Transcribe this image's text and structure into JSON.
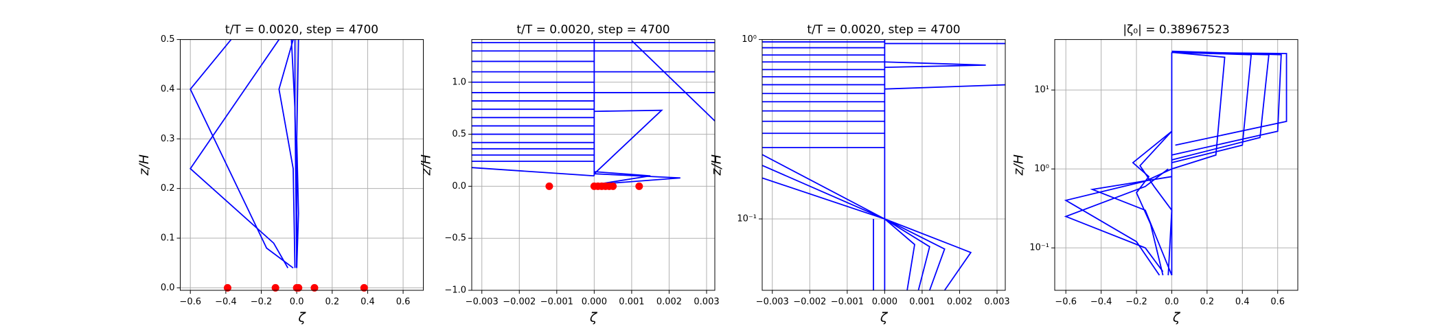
{
  "chart_data": [
    {
      "type": "line",
      "title": "t/T = 0.0020, step = 4700",
      "xlabel": "ζ",
      "ylabel": "z/H",
      "grid": true,
      "ylog": false,
      "xlim": [
        -0.657,
        0.714
      ],
      "ylim": [
        -0.005,
        0.5
      ],
      "xticks": [
        {
          "value": -0.6,
          "label": "−0.6"
        },
        {
          "value": -0.4,
          "label": "−0.4"
        },
        {
          "value": -0.2,
          "label": "−0.2"
        },
        {
          "value": 0,
          "label": "0.0"
        },
        0.2,
        0.4,
        0.6
      ],
      "yticks": [
        {
          "value": 0,
          "label": "0.0"
        },
        0.1,
        0.2,
        0.3,
        0.4,
        0.5
      ],
      "series": [
        {
          "color": "#0000ff",
          "x": [
            -0.37,
            -0.6,
            -0.17,
            -0.02
          ],
          "values": [
            0.5,
            0.4,
            0.08,
            0.04
          ]
        },
        {
          "color": "#0000ff",
          "x": [
            -0.1,
            -0.6,
            -0.13,
            -0.05
          ],
          "values": [
            0.5,
            0.24,
            0.09,
            0.04
          ]
        },
        {
          "color": "#0000ff",
          "x": [
            -0.02,
            -0.1,
            -0.02,
            -0.01
          ],
          "values": [
            0.5,
            0.4,
            0.24,
            0.04
          ]
        },
        {
          "color": "#0000ff",
          "x": [
            -0.01,
            -0.01,
            0.0,
            0.0
          ],
          "values": [
            0.5,
            0.35,
            0.2,
            0.04
          ]
        },
        {
          "color": "#0000ff",
          "x": [
            0.01,
            0.0,
            0.01,
            0.0
          ],
          "values": [
            0.5,
            0.3,
            0.15,
            0.04
          ]
        },
        {
          "color": "#0000ff",
          "x": [
            -0.03,
            -0.01,
            0.0
          ],
          "values": [
            0.5,
            0.36,
            0.04
          ]
        }
      ],
      "points": {
        "color": "#ff0000",
        "x": [
          -0.39,
          -0.12,
          0.0,
          0.01,
          0.1,
          0.38
        ],
        "values": [
          0,
          0,
          0,
          0,
          0,
          0
        ]
      }
    },
    {
      "type": "line",
      "title": "t/T = 0.0020, step = 4700",
      "xlabel": "ζ",
      "ylabel": "z/H",
      "grid": true,
      "ylog": false,
      "xlim": [
        -0.00327,
        0.00322
      ],
      "ylim": [
        -1.0,
        1.41
      ],
      "xticks": [
        {
          "value": -0.003,
          "label": "−0.003"
        },
        {
          "value": -0.002,
          "label": "−0.002"
        },
        {
          "value": -0.001,
          "label": "−0.001"
        },
        {
          "value": 0,
          "label": "0.000"
        },
        0.001,
        0.002,
        0.003
      ],
      "yticks": [
        {
          "value": -1.0,
          "label": "−1.0"
        },
        {
          "value": -0.5,
          "label": "−0.5"
        },
        {
          "value": 0,
          "label": "0.0"
        },
        0.5,
        {
          "value": 1.0,
          "label": "1.0"
        }
      ],
      "series": [
        {
          "color": "#0000ff",
          "x": [
            0,
            0
          ],
          "values": [
            0.1,
            1.41
          ]
        },
        {
          "color": "#0000ff",
          "x": [
            -0.0033,
            0,
            0
          ],
          "values": [
            0.18,
            0.1,
            0.1
          ]
        },
        {
          "color": "#0000ff",
          "x": [
            -0.0033,
            0
          ],
          "values": [
            0.24,
            0.24
          ]
        },
        {
          "color": "#0000ff",
          "x": [
            -0.0033,
            0
          ],
          "values": [
            0.3,
            0.3
          ]
        },
        {
          "color": "#0000ff",
          "x": [
            -0.0033,
            0
          ],
          "values": [
            0.36,
            0.36
          ]
        },
        {
          "color": "#0000ff",
          "x": [
            -0.0033,
            0
          ],
          "values": [
            0.42,
            0.42
          ]
        },
        {
          "color": "#0000ff",
          "x": [
            -0.0033,
            0
          ],
          "values": [
            0.5,
            0.5
          ]
        },
        {
          "color": "#0000ff",
          "x": [
            -0.0033,
            0
          ],
          "values": [
            0.58,
            0.58
          ]
        },
        {
          "color": "#0000ff",
          "x": [
            -0.0033,
            0
          ],
          "values": [
            0.66,
            0.66
          ]
        },
        {
          "color": "#0000ff",
          "x": [
            -0.0033,
            0
          ],
          "values": [
            0.74,
            0.74
          ]
        },
        {
          "color": "#0000ff",
          "x": [
            -0.0033,
            0
          ],
          "values": [
            0.82,
            0.82
          ]
        },
        {
          "color": "#0000ff",
          "x": [
            -0.0033,
            0
          ],
          "values": [
            0.9,
            0.9
          ]
        },
        {
          "color": "#0000ff",
          "x": [
            -0.0033,
            0
          ],
          "values": [
            1.0,
            1.0
          ]
        },
        {
          "color": "#0000ff",
          "x": [
            -0.0033,
            0
          ],
          "values": [
            1.1,
            1.1
          ]
        },
        {
          "color": "#0000ff",
          "x": [
            -0.0033,
            0
          ],
          "values": [
            1.2,
            1.2
          ]
        },
        {
          "color": "#0000ff",
          "x": [
            -0.0033,
            0
          ],
          "values": [
            1.3,
            1.3
          ]
        },
        {
          "color": "#0000ff",
          "x": [
            -0.0033,
            0
          ],
          "values": [
            1.38,
            1.38
          ]
        },
        {
          "color": "#0000ff",
          "x": [
            0,
            0.0033
          ],
          "values": [
            1.3,
            1.3
          ]
        },
        {
          "color": "#0000ff",
          "x": [
            0,
            0.0033
          ],
          "values": [
            1.38,
            1.38
          ]
        },
        {
          "color": "#0000ff",
          "x": [
            0,
            0.0033
          ],
          "values": [
            0.9,
            0.9
          ]
        },
        {
          "color": "#0000ff",
          "x": [
            0,
            0.0033
          ],
          "values": [
            1.1,
            1.1
          ]
        },
        {
          "color": "#0000ff",
          "x": [
            0,
            0.0023,
            0.0001
          ],
          "values": [
            0.12,
            0.08,
            0.02
          ]
        },
        {
          "color": "#0000ff",
          "x": [
            0,
            0.0015,
            0.0001
          ],
          "values": [
            0.14,
            0.1,
            0.02
          ]
        },
        {
          "color": "#0000ff",
          "x": [
            0,
            0.0018,
            0
          ],
          "values": [
            0.72,
            0.73,
            0.12
          ]
        },
        {
          "color": "#0000ff",
          "x": [
            0.001,
            0.0033
          ],
          "values": [
            1.4,
            0.6
          ]
        }
      ],
      "points": {
        "color": "#ff0000",
        "x": [
          -0.0012,
          0.0,
          0.0001,
          0.0002,
          0.0003,
          0.0004,
          0.0005,
          0.0012
        ],
        "values": [
          0,
          0,
          0,
          0,
          0,
          0,
          0,
          0
        ]
      }
    },
    {
      "type": "line",
      "title": "t/T = 0.0020, step = 4700",
      "xlabel": "ζ",
      "ylabel": "z/H",
      "grid": true,
      "ylog": true,
      "xlim": [
        -0.00327,
        0.00322
      ],
      "ylim": [
        0.04,
        1
      ],
      "xticks": [
        {
          "value": -0.003,
          "label": "−0.003"
        },
        {
          "value": -0.002,
          "label": "−0.002"
        },
        {
          "value": -0.001,
          "label": "−0.001"
        },
        {
          "value": 0,
          "label": "0.000"
        },
        0.001,
        0.002,
        0.003
      ],
      "yticks": [
        {
          "value": 0.1,
          "label": "10⁻¹"
        },
        {
          "value": 1,
          "label": "10⁰"
        }
      ],
      "series": [
        {
          "color": "#0000ff",
          "x": [
            0,
            0
          ],
          "values": [
            0.04,
            1
          ]
        },
        {
          "color": "#0000ff",
          "x": [
            -0.0003,
            -0.0003
          ],
          "values": [
            0.04,
            0.1
          ]
        },
        {
          "color": "#0000ff",
          "x": [
            -0.0033,
            0
          ],
          "values": [
            0.17,
            0.1
          ]
        },
        {
          "color": "#0000ff",
          "x": [
            -0.0033,
            0
          ],
          "values": [
            0.2,
            0.1
          ]
        },
        {
          "color": "#0000ff",
          "x": [
            -0.0033,
            0
          ],
          "values": [
            0.23,
            0.1
          ]
        },
        {
          "color": "#0000ff",
          "x": [
            -0.0033,
            0
          ],
          "values": [
            0.25,
            0.25
          ]
        },
        {
          "color": "#0000ff",
          "x": [
            -0.0033,
            0
          ],
          "values": [
            0.3,
            0.3
          ]
        },
        {
          "color": "#0000ff",
          "x": [
            -0.0033,
            0
          ],
          "values": [
            0.35,
            0.35
          ]
        },
        {
          "color": "#0000ff",
          "x": [
            -0.0033,
            0
          ],
          "values": [
            0.4,
            0.4
          ]
        },
        {
          "color": "#0000ff",
          "x": [
            -0.0033,
            0
          ],
          "values": [
            0.45,
            0.45
          ]
        },
        {
          "color": "#0000ff",
          "x": [
            -0.0033,
            0
          ],
          "values": [
            0.5,
            0.5
          ]
        },
        {
          "color": "#0000ff",
          "x": [
            -0.0033,
            0
          ],
          "values": [
            0.56,
            0.56
          ]
        },
        {
          "color": "#0000ff",
          "x": [
            -0.0033,
            0
          ],
          "values": [
            0.62,
            0.62
          ]
        },
        {
          "color": "#0000ff",
          "x": [
            -0.0033,
            0
          ],
          "values": [
            0.68,
            0.68
          ]
        },
        {
          "color": "#0000ff",
          "x": [
            -0.0033,
            0
          ],
          "values": [
            0.75,
            0.75
          ]
        },
        {
          "color": "#0000ff",
          "x": [
            -0.0033,
            0
          ],
          "values": [
            0.82,
            0.82
          ]
        },
        {
          "color": "#0000ff",
          "x": [
            -0.0033,
            0
          ],
          "values": [
            0.9,
            0.9
          ]
        },
        {
          "color": "#0000ff",
          "x": [
            -0.0033,
            0
          ],
          "values": [
            0.97,
            0.97
          ]
        },
        {
          "color": "#0000ff",
          "x": [
            0,
            0.0023,
            0.0016
          ],
          "values": [
            0.1,
            0.065,
            0.04
          ]
        },
        {
          "color": "#0000ff",
          "x": [
            0,
            0.0016,
            0.0012
          ],
          "values": [
            0.1,
            0.068,
            0.04
          ]
        },
        {
          "color": "#0000ff",
          "x": [
            0,
            0.0012,
            0.0009
          ],
          "values": [
            0.1,
            0.07,
            0.04
          ]
        },
        {
          "color": "#0000ff",
          "x": [
            0,
            0.0008,
            0.0006
          ],
          "values": [
            0.1,
            0.072,
            0.04
          ]
        },
        {
          "color": "#0000ff",
          "x": [
            0,
            0.0033
          ],
          "values": [
            0.53,
            0.56
          ]
        },
        {
          "color": "#0000ff",
          "x": [
            0,
            0.0027,
            0
          ],
          "values": [
            0.7,
            0.72,
            0.75
          ]
        },
        {
          "color": "#0000ff",
          "x": [
            0,
            0.0033
          ],
          "values": [
            0.95,
            0.95
          ]
        }
      ]
    },
    {
      "type": "line",
      "title": "|ζ₀| = 0.38967523",
      "xlabel": "ζ",
      "ylabel": "z/H",
      "grid": true,
      "ylog": true,
      "xlim": [
        -0.663,
        0.714
      ],
      "ylim": [
        0.029,
        43.6
      ],
      "xticks": [
        {
          "value": -0.6,
          "label": "−0.6"
        },
        {
          "value": -0.4,
          "label": "−0.4"
        },
        {
          "value": -0.2,
          "label": "−0.2"
        },
        {
          "value": 0,
          "label": "0.0"
        },
        0.2,
        0.4,
        0.6
      ],
      "yticks": [
        {
          "value": 0.1,
          "label": "10⁻¹"
        },
        {
          "value": 1,
          "label": "10⁰"
        },
        {
          "value": 10,
          "label": "10¹"
        }
      ],
      "series": [
        {
          "color": "#0000ff",
          "x": [
            0,
            0
          ],
          "values": [
            0.045,
            30
          ]
        },
        {
          "color": "#0000ff",
          "x": [
            0,
            0.65,
            0.65,
            0.02
          ],
          "values": [
            30,
            29,
            4,
            2
          ]
        },
        {
          "color": "#0000ff",
          "x": [
            0,
            0.62,
            0.6,
            0.0
          ],
          "values": [
            31,
            28,
            3,
            1.5
          ]
        },
        {
          "color": "#0000ff",
          "x": [
            0,
            0.55,
            0.5,
            0.0
          ],
          "values": [
            30,
            28,
            2.5,
            1.3
          ]
        },
        {
          "color": "#0000ff",
          "x": [
            0,
            0.45,
            0.4,
            0
          ],
          "values": [
            30,
            28,
            2,
            1.2
          ]
        },
        {
          "color": "#0000ff",
          "x": [
            0,
            0.3,
            0.25,
            0
          ],
          "values": [
            30,
            26,
            1.5,
            1
          ]
        },
        {
          "color": "#0000ff",
          "x": [
            0,
            -0.22,
            -0.13,
            -0.2,
            -0.12,
            -0.05
          ],
          "values": [
            3,
            1.2,
            0.8,
            0.5,
            0.2,
            0.045
          ]
        },
        {
          "color": "#0000ff",
          "x": [
            -0.02,
            -0.15,
            -0.6,
            -0.15,
            -0.05
          ],
          "values": [
            1,
            0.6,
            0.25,
            0.1,
            0.05
          ]
        },
        {
          "color": "#0000ff",
          "x": [
            0,
            -0.15,
            -0.6,
            -0.2,
            -0.07
          ],
          "values": [
            1,
            0.7,
            0.4,
            0.12,
            0.045
          ]
        },
        {
          "color": "#0000ff",
          "x": [
            0,
            -0.45,
            -0.15,
            0
          ],
          "values": [
            0.8,
            0.55,
            0.3,
            0.045
          ]
        },
        {
          "color": "#0000ff",
          "x": [
            0,
            -0.18,
            -0.1,
            0,
            -0.02
          ],
          "values": [
            3,
            1.1,
            0.6,
            0.3,
            0.045
          ]
        }
      ]
    }
  ]
}
